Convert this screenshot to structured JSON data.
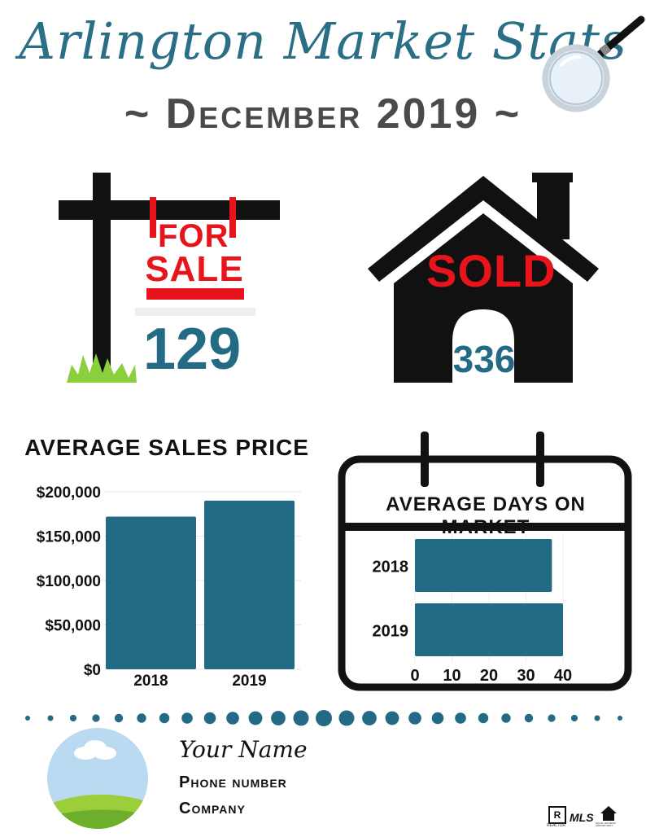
{
  "header": {
    "title": "Arlington Market Stats",
    "subtitle": "~ December 2019 ~"
  },
  "for_sale": {
    "sign_line1": "FOR",
    "sign_line2": "SALE",
    "count": "129"
  },
  "sold": {
    "sign_text": "SOLD",
    "count": "336"
  },
  "chart_data": [
    {
      "type": "bar",
      "title": "AVERAGE SALES PRICE",
      "categories": [
        "2018",
        "2019"
      ],
      "values": [
        172000,
        190000
      ],
      "ylim": [
        0,
        200000
      ],
      "yticks": [
        "$0",
        "$50,000",
        "$100,000",
        "$150,000",
        "$200,000"
      ],
      "grid": true
    },
    {
      "type": "bar",
      "orientation": "horizontal",
      "title": "AVERAGE DAYS ON MARKET",
      "categories": [
        "2018",
        "2019"
      ],
      "values": [
        37,
        40
      ],
      "xlim": [
        0,
        40
      ],
      "xticks": [
        "0",
        "10",
        "20",
        "30",
        "40"
      ],
      "grid": true
    }
  ],
  "agent": {
    "name": "Your Name",
    "phone": "Phone number",
    "company": "Company"
  },
  "footer": {
    "logos": [
      "REALTOR",
      "MLS",
      "EQUAL HOUSING OPPORTUNITY"
    ]
  },
  "colors": {
    "accent": "#236a84",
    "sold_red": "#e8141b",
    "grass": "#8ccf3c",
    "dark_text": "#4a4a4a"
  }
}
